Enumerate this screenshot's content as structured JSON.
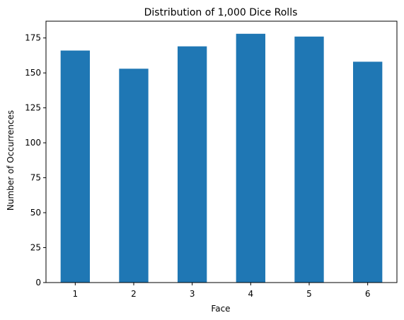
{
  "chart_data": {
    "type": "bar",
    "title": "Distribution of 1,000 Dice Rolls",
    "xlabel": "Face",
    "ylabel": "Number of Occurrences",
    "categories": [
      "1",
      "2",
      "3",
      "4",
      "5",
      "6"
    ],
    "values": [
      166,
      153,
      169,
      178,
      176,
      158
    ],
    "ylim": [
      0,
      187
    ],
    "yticks": [
      0,
      25,
      50,
      75,
      100,
      125,
      150,
      175
    ],
    "grid": false,
    "legend": "none",
    "bar_color": "#1f77b4"
  }
}
